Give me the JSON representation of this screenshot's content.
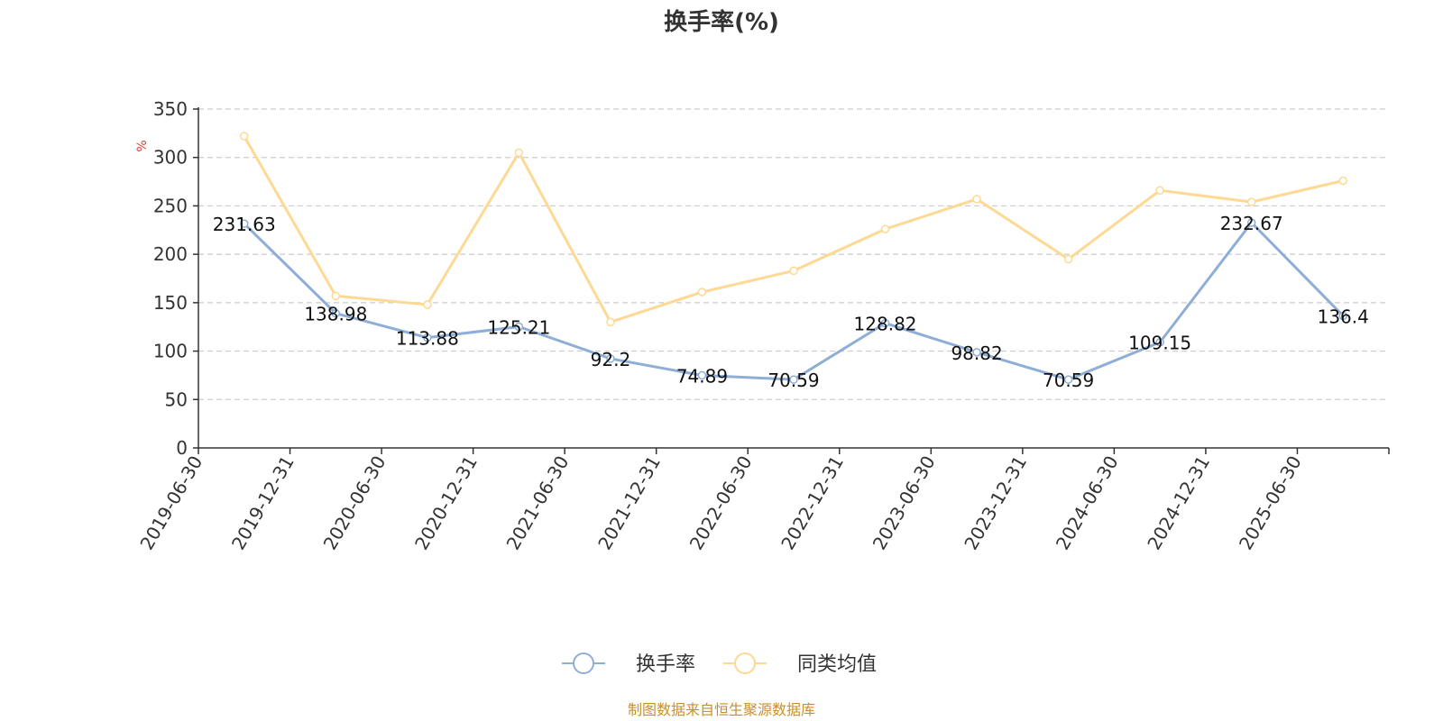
{
  "chart_data": {
    "type": "line",
    "title": "换手率(%)",
    "ylabel": "%",
    "ylim": [
      0,
      350
    ],
    "yticks": [
      0,
      50,
      100,
      150,
      200,
      250,
      300,
      350
    ],
    "grid": true,
    "legend_position": "bottom-center",
    "x": [
      "2019-06-30",
      "2019-12-31",
      "2020-06-30",
      "2020-12-31",
      "2021-06-30",
      "2021-12-31",
      "2022-06-30",
      "2022-12-31",
      "2023-06-30",
      "2023-12-31",
      "2024-06-30",
      "2024-12-31",
      "2025-06-30"
    ],
    "series": [
      {
        "name": "换手率",
        "color": "#8eaed8",
        "values": [
          231.63,
          138.98,
          113.88,
          125.21,
          92.2,
          74.89,
          70.59,
          128.82,
          98.82,
          70.59,
          109.15,
          232.67,
          136.4
        ],
        "labels": [
          "231.63",
          "138.98",
          "113.88",
          "125.21",
          "92.2",
          "74.89",
          "70.59",
          "128.82",
          "98.82",
          "70.59",
          "109.15",
          "232.67",
          "136.4"
        ]
      },
      {
        "name": "同类均值",
        "color": "#fdd993",
        "values": [
          322,
          157,
          148,
          305,
          130,
          161,
          183,
          226,
          257,
          195,
          266,
          254,
          276
        ]
      }
    ]
  },
  "source": "制图数据来自恒生聚源数据库"
}
